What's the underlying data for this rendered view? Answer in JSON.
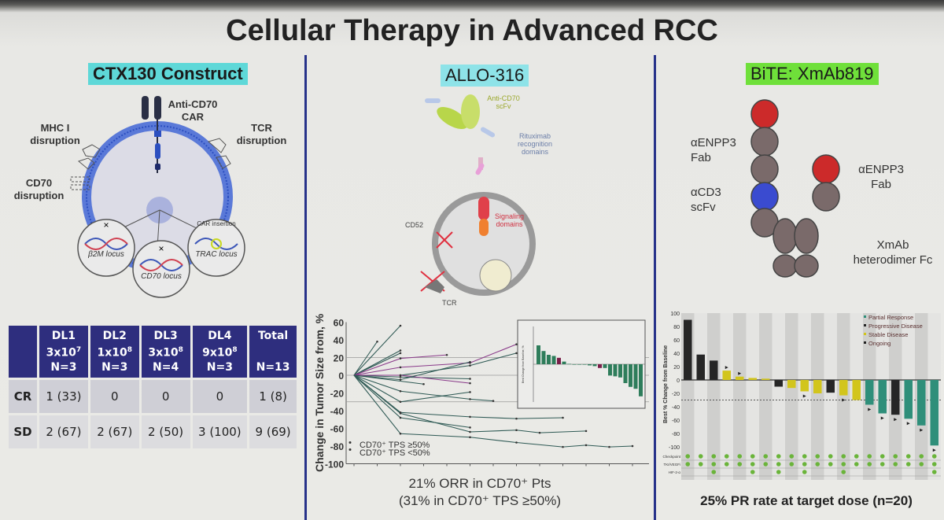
{
  "title": "Cellular Therapy in Advanced RCC",
  "colors": {
    "divider": "#27328a",
    "table_header": "#2e2e7e",
    "ctx_highlight": "#5ed8d8",
    "allo_highlight": "#8ee3e8",
    "bite_highlight": "#6fe03a",
    "pr": "#2f8f7a",
    "pd": "#262626",
    "sd": "#d2c51c",
    "allo_bar": "#2e7d5b",
    "allo_bar_alt": "#7a1f4a"
  },
  "ctx130": {
    "heading": "CTX130 Construct",
    "labels": {
      "car": "Anti-CD70 CAR",
      "mhc": "MHC I disruption",
      "tcr": "TCR disruption",
      "cd70": "CD70 disruption",
      "car_insertion": "CAR insertion",
      "b2m": "β2M locus",
      "trac": "TRAC locus",
      "cd70_locus": "CD70 locus"
    },
    "table": {
      "columns": [
        {
          "dl": "DL1",
          "dose": "3x10",
          "exp": "7",
          "n": "N=3"
        },
        {
          "dl": "DL2",
          "dose": "1x10",
          "exp": "8",
          "n": "N=3"
        },
        {
          "dl": "DL3",
          "dose": "3x10",
          "exp": "8",
          "n": "N=4"
        },
        {
          "dl": "DL4",
          "dose": "9x10",
          "exp": "8",
          "n": "N=3"
        },
        {
          "dl": "Total",
          "dose": "",
          "exp": "",
          "n": "N=13"
        }
      ],
      "rows": [
        {
          "label": "CR",
          "cells": [
            "1 (33)",
            "0",
            "0",
            "0",
            "1 (8)"
          ]
        },
        {
          "label": "SD",
          "cells": [
            "2 (67)",
            "2 (67)",
            "2 (50)",
            "3 (100)",
            "9 (69)"
          ]
        }
      ]
    }
  },
  "allo316": {
    "heading": "ALLO-316",
    "labels": {
      "scfv": "Anti-CD70 scFv",
      "rituximab": "Rituximab recognition domains",
      "signaling": "Signaling domains",
      "cd52": "CD52",
      "tcr": "TCR"
    },
    "caption1": "21% ORR in CD70⁺ Pts",
    "caption2": "(31% in CD70⁺ TPS ≥50%)"
  },
  "bite": {
    "heading": "BiTE: XmAb819",
    "labels": {
      "fab1": "αENPP3 Fab",
      "fab2": "αENPP3 Fab",
      "scfv": "αCD3 scFv",
      "fc": "XmAb heterodimer Fc"
    },
    "caption": "25% PR rate at target dose (n=20)"
  },
  "chart_data": [
    {
      "type": "line",
      "ylabel": "Change in Tumor Size from, %",
      "ylim": [
        -100,
        60
      ],
      "yticks": [
        60,
        40,
        20,
        0,
        -20,
        -40,
        -60,
        -80,
        -100
      ],
      "reference_lines": [
        20,
        0,
        -30
      ],
      "legend": [
        "CD70⁺ TPS ≥50%",
        "CD70⁺ TPS <50%"
      ],
      "legend_placement": "bottom-left",
      "series": [
        {
          "group": "a",
          "points": [
            [
              0,
              0
            ],
            [
              1,
              38
            ]
          ]
        },
        {
          "group": "a",
          "points": [
            [
              0,
              0
            ],
            [
              2,
              56
            ]
          ]
        },
        {
          "group": "a",
          "points": [
            [
              0,
              0
            ],
            [
              2,
              28
            ]
          ]
        },
        {
          "group": "a",
          "points": [
            [
              0,
              0
            ],
            [
              2,
              25
            ]
          ]
        },
        {
          "group": "b",
          "points": [
            [
              0,
              0
            ],
            [
              2,
              19
            ],
            [
              4,
              23
            ]
          ]
        },
        {
          "group": "b",
          "points": [
            [
              0,
              0
            ],
            [
              2,
              9
            ],
            [
              5,
              14
            ],
            [
              7,
              35
            ]
          ]
        },
        {
          "group": "a",
          "points": [
            [
              0,
              0
            ],
            [
              2,
              0
            ],
            [
              5,
              11
            ],
            [
              7,
              25
            ]
          ]
        },
        {
          "group": "a",
          "points": [
            [
              0,
              0
            ],
            [
              2,
              -2
            ],
            [
              5,
              -4
            ]
          ]
        },
        {
          "group": "b",
          "points": [
            [
              0,
              0
            ],
            [
              2,
              0
            ],
            [
              5,
              -9
            ]
          ]
        },
        {
          "group": "a",
          "points": [
            [
              0,
              0
            ],
            [
              3,
              -10
            ]
          ]
        },
        {
          "group": "a",
          "points": [
            [
              0,
              0
            ],
            [
              2,
              -5
            ],
            [
              5,
              15
            ]
          ]
        },
        {
          "group": "a",
          "points": [
            [
              0,
              0
            ],
            [
              2,
              -18
            ],
            [
              5,
              -27
            ],
            [
              6,
              -29
            ]
          ]
        },
        {
          "group": "a",
          "points": [
            [
              0,
              0
            ],
            [
              2,
              -30
            ],
            [
              5,
              -19
            ]
          ]
        },
        {
          "group": "a",
          "points": [
            [
              0,
              0
            ],
            [
              2,
              -42
            ],
            [
              5,
              -47
            ],
            [
              7,
              -49
            ],
            [
              9,
              -48
            ]
          ]
        },
        {
          "group": "a",
          "points": [
            [
              0,
              0
            ],
            [
              2,
              -48
            ],
            [
              5,
              -59
            ]
          ]
        },
        {
          "group": "a",
          "points": [
            [
              0,
              0
            ],
            [
              2,
              -43
            ],
            [
              5,
              -64
            ],
            [
              7,
              -62
            ],
            [
              8,
              -65
            ],
            [
              10,
              -63
            ]
          ]
        },
        {
          "group": "a",
          "points": [
            [
              0,
              0
            ],
            [
              2,
              -66
            ],
            [
              5,
              -70
            ],
            [
              7,
              -76
            ],
            [
              9,
              -81
            ],
            [
              10,
              -79
            ],
            [
              11,
              -81
            ],
            [
              12,
              -80
            ]
          ]
        }
      ]
    },
    {
      "type": "bar",
      "inset": true,
      "ylabel": "Best Change from Baseline, %",
      "ylim": [
        -100,
        100
      ],
      "values": [
        50,
        35,
        25,
        22,
        17,
        7,
        1,
        0,
        0,
        0,
        -3,
        -5,
        -10,
        -10,
        -30,
        -32,
        -35,
        -50,
        -60,
        -65,
        -85
      ],
      "highlight_indices": [
        4,
        12
      ]
    },
    {
      "type": "bar",
      "ylabel": "Best % Change from Baseline",
      "ylim": [
        -100,
        100
      ],
      "yticks": [
        100,
        80,
        60,
        40,
        20,
        0,
        -20,
        -40,
        -60,
        -80,
        -100
      ],
      "reference_line": -30,
      "legend": [
        "Partial Response",
        "Progressive Disease",
        "Stable Disease",
        "Ongoing"
      ],
      "legend_placement": "top-right",
      "values": [
        90,
        38,
        29,
        14,
        5,
        3,
        2,
        -10,
        -12,
        -17,
        -20,
        -19,
        -23,
        -30,
        -37,
        -50,
        -52,
        -58,
        -68,
        -98
      ],
      "response": [
        "PD",
        "PD",
        "PD",
        "SD",
        "SD",
        "SD",
        "SD",
        "PD",
        "SD",
        "SD",
        "SD",
        "PD",
        "SD",
        "SD",
        "PR",
        "PR",
        "PD",
        "PR",
        "PR",
        "PR"
      ],
      "ongoing": [
        3,
        4,
        9,
        12,
        14,
        15,
        16,
        17,
        18,
        19
      ],
      "prior_therapy": {
        "rows": [
          "Checkpoint",
          "TKI/VEGFi",
          "HIF-2-α"
        ],
        "hif_indices": [
          2,
          5,
          7,
          9,
          12,
          19
        ]
      }
    }
  ]
}
